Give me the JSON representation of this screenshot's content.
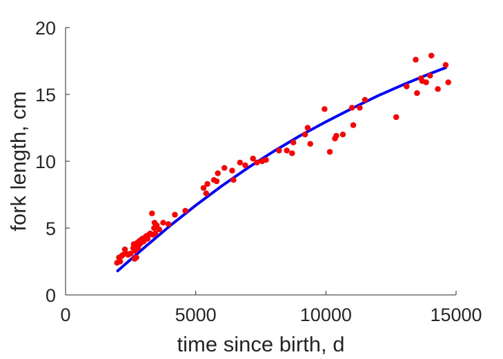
{
  "chart_data": {
    "type": "scatter",
    "title": "",
    "xlabel": "time since birth, d",
    "ylabel": "fork length, cm",
    "xlim": [
      0,
      15000
    ],
    "ylim": [
      0,
      20
    ],
    "xticks": [
      0,
      5000,
      10000,
      15000
    ],
    "yticks": [
      0,
      5,
      10,
      15,
      20
    ],
    "xtick_labels": [
      "0",
      "5000",
      "10000",
      "15000"
    ],
    "ytick_labels": [
      "0",
      "5",
      "10",
      "15",
      "20"
    ],
    "grid": false,
    "box": false,
    "colors": {
      "points": "#ff0000",
      "fit": "#0000ff",
      "axis": "#262626"
    },
    "series": [
      {
        "kind": "points",
        "x": [
          1980,
          2050,
          2100,
          2150,
          2200,
          2280,
          2320,
          2400,
          2500,
          2600,
          2620,
          2650,
          2680,
          2700,
          2720,
          2750,
          2780,
          2800,
          2820,
          2850,
          2880,
          2900,
          2950,
          3000,
          3050,
          3100,
          3150,
          3200,
          3250,
          3320,
          3350,
          3400,
          3420,
          3450,
          3500,
          3600,
          3750,
          3950,
          4200,
          4600,
          5300,
          5450,
          5400,
          5700,
          5800,
          5850,
          6100,
          6450,
          6400,
          6700,
          6900,
          7200,
          7350,
          7550,
          7700,
          8200,
          8500,
          8700,
          8750,
          9200,
          9300,
          9400,
          9950,
          10150,
          10350,
          10400,
          10650,
          11000,
          11050,
          11300,
          11500,
          12700,
          13100,
          13450,
          13500,
          13650,
          13700,
          13850,
          14000,
          14050,
          14300,
          14600,
          14700
        ],
        "y": [
          2.4,
          2.8,
          2.5,
          2.9,
          3.0,
          3.4,
          3.1,
          3.0,
          3.1,
          3.5,
          3.8,
          2.7,
          3.3,
          3.6,
          2.8,
          3.9,
          3.5,
          3.7,
          4.0,
          3.8,
          4.1,
          3.9,
          4.2,
          4.0,
          4.3,
          4.4,
          4.2,
          4.5,
          4.6,
          6.1,
          4.5,
          5.0,
          5.4,
          4.6,
          5.2,
          4.9,
          5.4,
          5.3,
          6.0,
          6.3,
          8.0,
          8.3,
          7.6,
          8.6,
          8.5,
          9.1,
          9.5,
          8.6,
          9.3,
          9.9,
          9.7,
          10.2,
          9.9,
          10.0,
          10.1,
          10.8,
          10.8,
          10.6,
          11.4,
          12.0,
          12.5,
          11.3,
          13.9,
          10.7,
          11.7,
          11.9,
          12.0,
          14.0,
          12.7,
          14.0,
          14.6,
          13.3,
          15.6,
          17.6,
          15.1,
          16.2,
          16.0,
          15.9,
          16.4,
          17.9,
          15.4,
          17.2,
          15.9
        ]
      },
      {
        "kind": "fit",
        "x": [
          2000,
          3000,
          4000,
          5000,
          6000,
          7000,
          8000,
          9000,
          10000,
          11000,
          12000,
          13000,
          14000,
          14600
        ],
        "y": [
          1.8,
          3.5,
          5.15,
          6.7,
          8.15,
          9.5,
          10.75,
          11.9,
          12.95,
          13.95,
          14.9,
          15.75,
          16.55,
          17.0
        ]
      }
    ]
  }
}
